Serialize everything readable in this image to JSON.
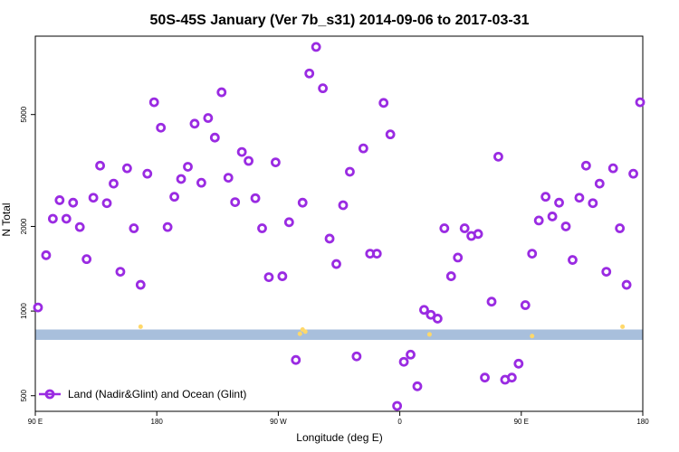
{
  "chart_data": {
    "type": "scatter",
    "title": "50S-45S January (Ver 7b_s31)   2014-09-06 to 2017-03-31",
    "xlabel": "Longitude (deg E)",
    "ylabel": "N Total",
    "x_ticks": [
      {
        "value": 90,
        "label": "90 E"
      },
      {
        "value": 180,
        "label": "180"
      },
      {
        "value": 270,
        "label": "90 W"
      },
      {
        "value": 360,
        "label": "0"
      },
      {
        "value": 450,
        "label": "90 E"
      },
      {
        "value": 540,
        "label": "180"
      }
    ],
    "y_ticks": [
      500,
      1000,
      2000,
      5000
    ],
    "y_scale": "log",
    "xlim": [
      90,
      540
    ],
    "ylim": [
      440,
      9500
    ],
    "grid": false,
    "legend_position": "bottom-left",
    "band": {
      "y_low": 790,
      "y_high": 860,
      "color": "#a8bfdc"
    },
    "series": [
      {
        "name": "Land (Nadir&Glint) and Ocean (Glint)",
        "color": "#9a2be2",
        "x": [
          92,
          98,
          103,
          108,
          113,
          118,
          123,
          128,
          133,
          138,
          143,
          148,
          153,
          158,
          163,
          168,
          173,
          178,
          183,
          188,
          193,
          198,
          203,
          208,
          213,
          218,
          223,
          228,
          233,
          238,
          243,
          248,
          253,
          258,
          263,
          268,
          273,
          278,
          283,
          288,
          293,
          298,
          303,
          308,
          313,
          318,
          323,
          328,
          333,
          338,
          343,
          348,
          353,
          358,
          363,
          368,
          373,
          378,
          383,
          388,
          393,
          398,
          403,
          408,
          413,
          418,
          423,
          428,
          433,
          438,
          443,
          448,
          453,
          458,
          463,
          468,
          473,
          478,
          483,
          488,
          493,
          498,
          503,
          508,
          513,
          518,
          523,
          528,
          533,
          538
        ],
        "y": [
          1030,
          1580,
          2130,
          2480,
          2130,
          2430,
          1990,
          1530,
          2530,
          3290,
          2420,
          2840,
          1380,
          3220,
          1970,
          1240,
          3080,
          5530,
          4490,
          1990,
          2550,
          2950,
          3260,
          4640,
          2860,
          4860,
          4140,
          6000,
          2980,
          2440,
          3680,
          3420,
          2520,
          1970,
          1320,
          3380,
          1330,
          2070,
          670,
          2430,
          7000,
          8700,
          6200,
          1810,
          1470,
          2380,
          3130,
          690,
          3790,
          1600,
          1600,
          5500,
          4250,
          460,
          660,
          700,
          540,
          1010,
          970,
          940,
          1970,
          1330,
          1550,
          1970,
          1850,
          1880,
          580,
          1080,
          3540,
          570,
          580,
          650,
          1050,
          1600,
          2100,
          2550,
          2170,
          2430,
          2000,
          1520,
          2530,
          3290,
          2420,
          2840,
          1380,
          3220,
          1970,
          1240,
          3080,
          5530
        ],
        "marker": "open-circle"
      },
      {
        "name": "",
        "color": "#ffd86a",
        "x": [
          168,
          286,
          288,
          290,
          382,
          458,
          525
        ],
        "y": [
          880,
          830,
          860,
          845,
          826,
          815,
          880
        ],
        "marker": "small-dot"
      }
    ]
  }
}
